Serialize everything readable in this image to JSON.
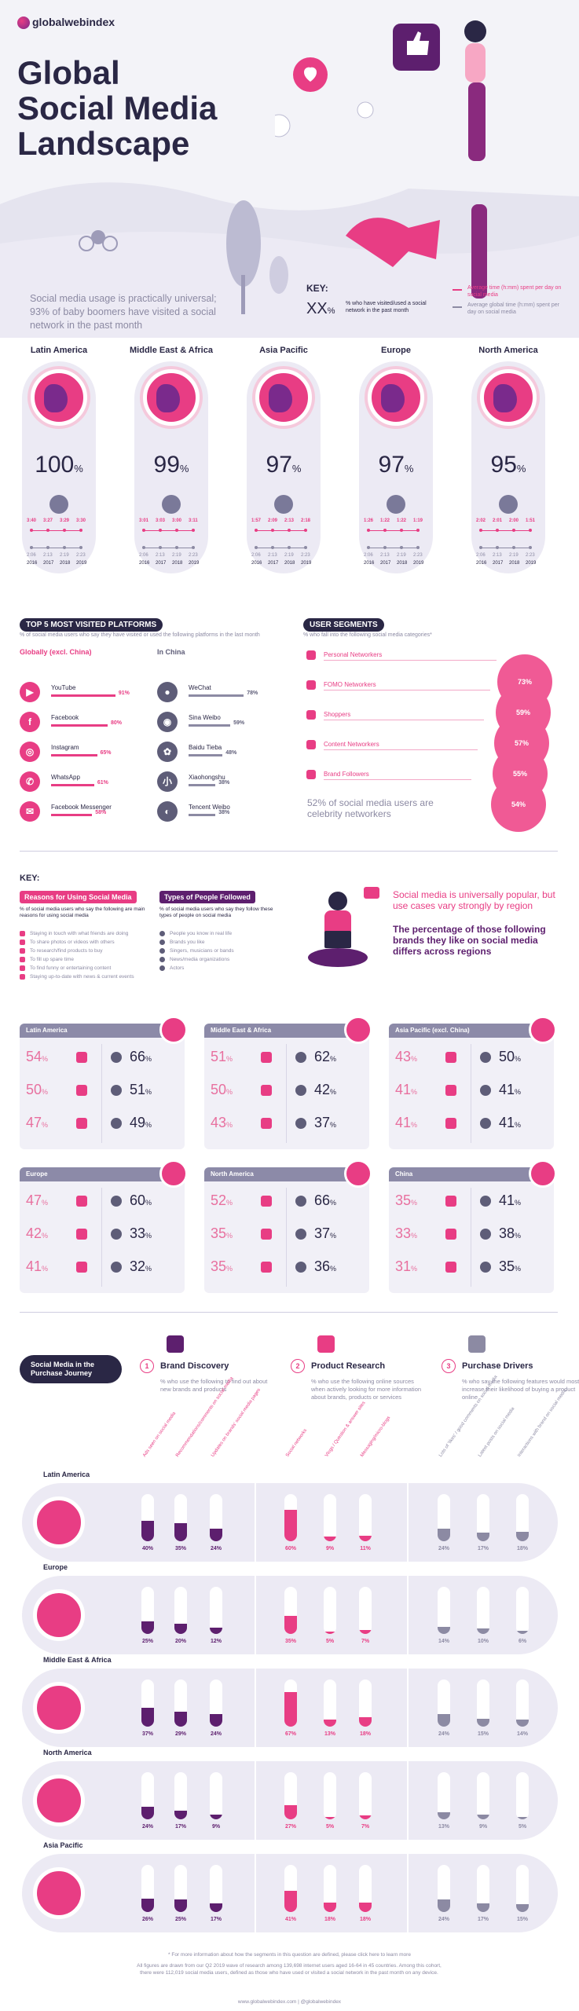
{
  "header": {
    "logo": "globalwebindex",
    "title_lines": [
      "Global",
      "Social Media",
      "Landscape"
    ],
    "subtitle": "Social media usage is practically universal; 93% of baby boomers have visited a social network in the past month"
  },
  "key": {
    "title": "KEY:",
    "sample": "XX",
    "sample_unit": "%",
    "sample_desc": "% who have visited/used a social network in the past month",
    "avg_time": "Average time (h:mm) spent per day on social media",
    "avg_global": "Average global time (h:mm) spent per day on social media"
  },
  "regions": [
    {
      "name": "Latin America",
      "pct": "100",
      "times": [
        "3:40",
        "3:27",
        "3:29",
        "3:30"
      ],
      "global": [
        "2:06",
        "2:13",
        "2:19",
        "2:23"
      ]
    },
    {
      "name": "Middle East & Africa",
      "pct": "99",
      "times": [
        "3:01",
        "3:03",
        "3:00",
        "3:11"
      ],
      "global": [
        "2:06",
        "2:13",
        "2:19",
        "2:23"
      ]
    },
    {
      "name": "Asia Pacific",
      "pct": "97",
      "times": [
        "1:57",
        "2:09",
        "2:13",
        "2:18"
      ],
      "global": [
        "2:06",
        "2:13",
        "2:19",
        "2:23"
      ]
    },
    {
      "name": "Europe",
      "pct": "97",
      "times": [
        "1:26",
        "1:22",
        "1:22",
        "1:19"
      ],
      "global": [
        "2:06",
        "2:13",
        "2:19",
        "2:23"
      ]
    },
    {
      "name": "North America",
      "pct": "95",
      "times": [
        "2:02",
        "2:01",
        "2:00",
        "1:51"
      ],
      "global": [
        "2:06",
        "2:13",
        "2:19",
        "2:23"
      ]
    }
  ],
  "pct_unit": "%",
  "years": [
    "2016",
    "2017",
    "2018",
    "2019"
  ],
  "platforms": {
    "title": "TOP 5 MOST VISITED PLATFORMS",
    "desc": "% of social media users who say they have visited or used the following platforms in the last month",
    "global_head": "Globally (excl. China)",
    "china_head": "In China",
    "global": [
      {
        "name": "YouTube",
        "value": "91%",
        "icon": "youtube-icon",
        "glyph": "▶"
      },
      {
        "name": "Facebook",
        "value": "80%",
        "icon": "facebook-icon",
        "glyph": "f"
      },
      {
        "name": "Instagram",
        "value": "65%",
        "icon": "instagram-icon",
        "glyph": "◎"
      },
      {
        "name": "WhatsApp",
        "value": "61%",
        "icon": "whatsapp-icon",
        "glyph": "✆"
      },
      {
        "name": "Facebook Messenger",
        "value": "58%",
        "icon": "messenger-icon",
        "glyph": "✉"
      }
    ],
    "china": [
      {
        "name": "WeChat",
        "value": "78%",
        "icon": "wechat-icon",
        "glyph": "●"
      },
      {
        "name": "Sina Weibo",
        "value": "59%",
        "icon": "weibo-icon",
        "glyph": "◉"
      },
      {
        "name": "Baidu Tieba",
        "value": "48%",
        "icon": "baidu-icon",
        "glyph": "✿"
      },
      {
        "name": "Xiaohongshu",
        "value": "38%",
        "icon": "xiaohongshu-icon",
        "glyph": "小"
      },
      {
        "name": "Tencent Weibo",
        "value": "38%",
        "icon": "tencent-weibo-icon",
        "glyph": "◐"
      }
    ]
  },
  "segments": {
    "title": "USER SEGMENTS",
    "desc": "% who fall into the following social media categories*",
    "items": [
      {
        "name": "Personal Networkers",
        "value": "73%"
      },
      {
        "name": "FOMO Networkers",
        "value": "59%"
      },
      {
        "name": "Shoppers",
        "value": "57%"
      },
      {
        "name": "Content Networkers",
        "value": "55%"
      },
      {
        "name": "Brand Followers",
        "value": "54%"
      }
    ],
    "note": "52% of social media users are celebrity networkers"
  },
  "key2": {
    "title": "KEY:",
    "reasons_head": "Reasons for Using Social Media",
    "reasons_desc": "% of social media users who say the following are main reasons for using social media",
    "reasons": [
      "Staying in touch with what friends are doing",
      "To share photos or videos with others",
      "To research/find products to buy",
      "To fill up spare time",
      "To find funny or entertaining content",
      "Staying up-to-date with news & current events"
    ],
    "follow_head": "Types of People Followed",
    "follow_desc": "% of social media users who say they follow these types of people on social media",
    "follow": [
      "People you know in real life",
      "Brands you like",
      "Singers, musicians or bands",
      "News/media organizations",
      "Actors"
    ],
    "headline": "Social media is universally popular, but use cases vary strongly by region",
    "subheadline": "The percentage of those following brands they like on social media differs across regions"
  },
  "region_boxes": [
    {
      "name": "Latin America",
      "left": [
        "54",
        "50",
        "47"
      ],
      "right": [
        "66",
        "51",
        "49"
      ]
    },
    {
      "name": "Middle East & Africa",
      "left": [
        "51",
        "50",
        "43"
      ],
      "right": [
        "62",
        "42",
        "37"
      ]
    },
    {
      "name": "Asia Pacific (excl. China)",
      "left": [
        "43",
        "41",
        "41"
      ],
      "right": [
        "50",
        "41",
        "41"
      ]
    },
    {
      "name": "Europe",
      "left": [
        "47",
        "42",
        "41"
      ],
      "right": [
        "60",
        "33",
        "32"
      ]
    },
    {
      "name": "North America",
      "left": [
        "52",
        "35",
        "35"
      ],
      "right": [
        "66",
        "37",
        "36"
      ]
    },
    {
      "name": "China",
      "left": [
        "35",
        "33",
        "31"
      ],
      "right": [
        "41",
        "38",
        "35"
      ]
    }
  ],
  "journey": {
    "title": "Social Media in the Purchase Journey",
    "steps": [
      {
        "num": "1",
        "title": "Brand Discovery",
        "desc": "% who use the following to find out about new brands and products"
      },
      {
        "num": "2",
        "title": "Product Research",
        "desc": "% who use the following online sources when actively looking for more information about brands, products or services"
      },
      {
        "num": "3",
        "title": "Purchase Drivers",
        "desc": "% who say the following features would most increase their likelihood of buying a product online"
      }
    ],
    "columns": [
      "Ads seen on social media",
      "Recommendations/comments on social media",
      "Updates on brands' social media pages",
      "Social networks",
      "Vlogs / Question & answer sites",
      "Messaging/micro-blogs",
      "Lots of 'likes' / good comments on social media",
      "Latest posts on social media",
      "Interactions with brand on social media"
    ],
    "rows": [
      {
        "name": "Latin America",
        "values": [
          40,
          35,
          24,
          60,
          9,
          11,
          24,
          17,
          18
        ]
      },
      {
        "name": "Europe",
        "values": [
          25,
          20,
          12,
          35,
          5,
          7,
          14,
          10,
          6
        ]
      },
      {
        "name": "Middle East & Africa",
        "values": [
          37,
          29,
          24,
          67,
          13,
          18,
          24,
          15,
          14
        ]
      },
      {
        "name": "North America",
        "values": [
          24,
          17,
          9,
          27,
          5,
          7,
          13,
          9,
          5
        ]
      },
      {
        "name": "Asia Pacific",
        "values": [
          26,
          25,
          17,
          41,
          18,
          18,
          24,
          17,
          15
        ]
      }
    ]
  },
  "footer": {
    "note1": "* For more information about how the segments in this question are defined, please click here to learn more",
    "note2": "All figures are drawn from our Q2 2019 wave of research among 139,698 internet users aged 16-64 in 45 countries. Among this cohort, there were 112,019 social media users, defined as those who have used or visited a social network in the past month on any device.",
    "url": "www.globalwebindex.com | @globalwebindex"
  },
  "colors": {
    "pink": "#e83d84",
    "purple": "#5d1f6e",
    "grey": "#8c8aa3",
    "navy": "#2a2745"
  }
}
